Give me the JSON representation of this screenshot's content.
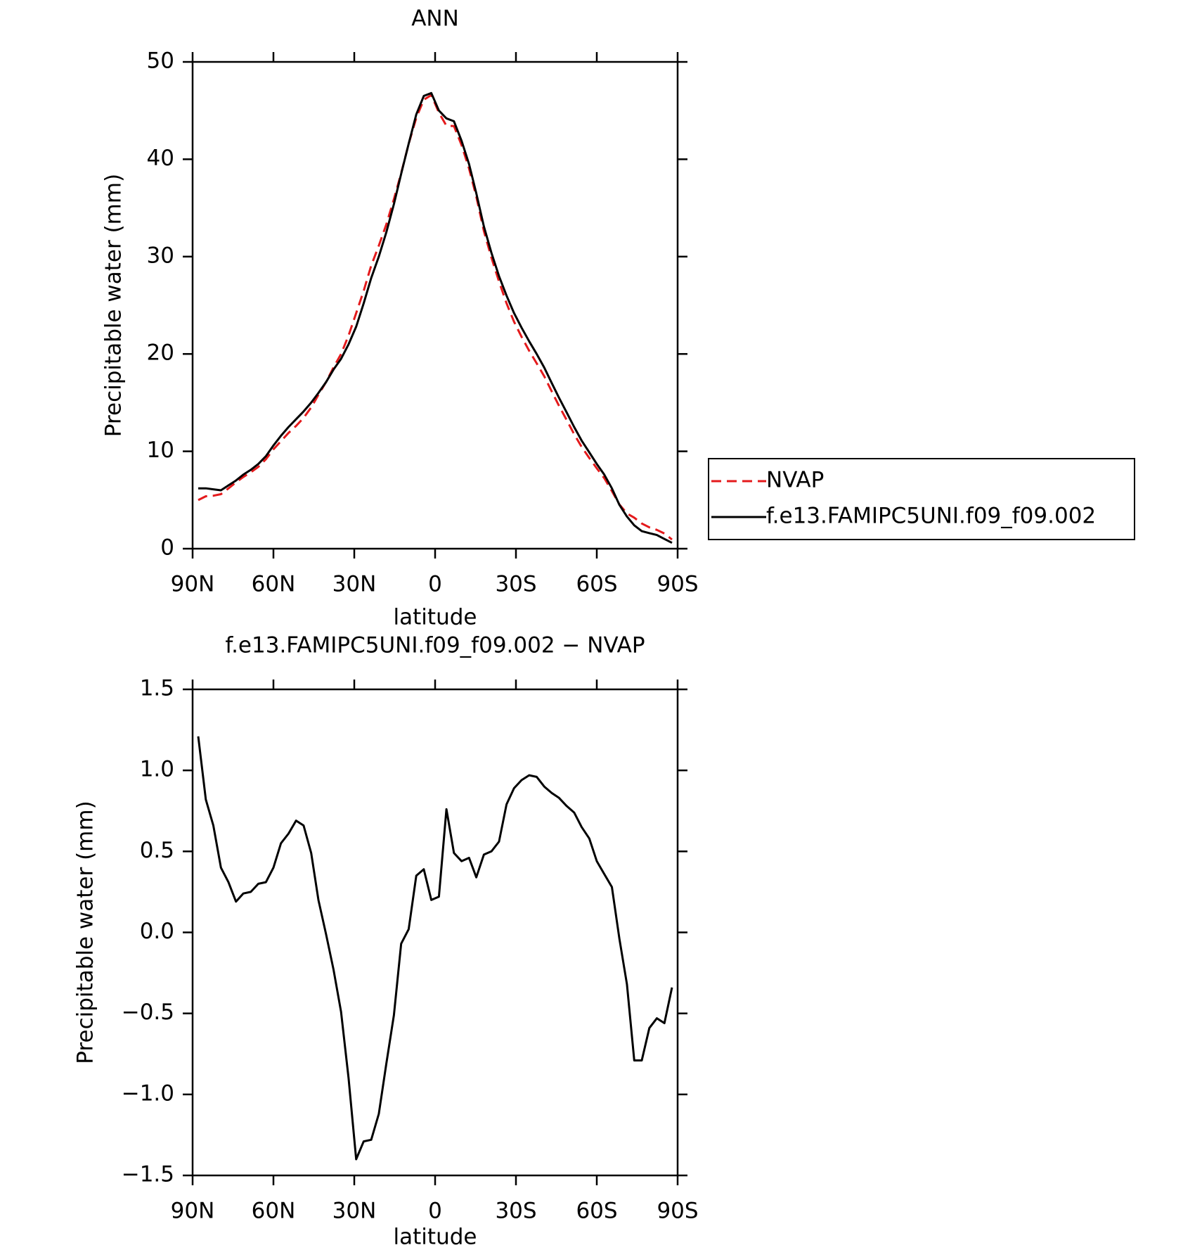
{
  "chart_data": [
    {
      "type": "line",
      "title": "ANN",
      "xlabel": "latitude",
      "ylabel": "Precipitable water (mm)",
      "x": [
        87.9,
        85.1,
        82.3,
        79.5,
        76.7,
        73.9,
        71.2,
        68.4,
        65.6,
        62.8,
        60.0,
        57.2,
        54.4,
        51.6,
        48.8,
        46.0,
        43.3,
        40.5,
        37.7,
        34.9,
        32.1,
        29.3,
        26.5,
        23.7,
        20.9,
        18.1,
        15.3,
        12.6,
        9.8,
        7.0,
        4.2,
        1.4,
        -1.4,
        -4.2,
        -7.0,
        -9.8,
        -12.6,
        -15.3,
        -18.1,
        -20.9,
        -23.7,
        -26.5,
        -29.3,
        -32.1,
        -34.9,
        -37.7,
        -40.5,
        -43.3,
        -46.0,
        -48.8,
        -51.6,
        -54.4,
        -57.2,
        -60.0,
        -62.8,
        -65.6,
        -68.4,
        -71.2,
        -73.9,
        -76.7,
        -79.5,
        -82.3,
        -85.1,
        -87.9
      ],
      "series": [
        {
          "name": "NVAP",
          "color": "#e41a1c",
          "dash": "dashed",
          "values": [
            4.99,
            5.38,
            5.44,
            5.6,
            6.19,
            6.81,
            7.36,
            7.85,
            8.4,
            9.19,
            10.2,
            11.05,
            11.89,
            12.61,
            13.44,
            14.51,
            15.8,
            17.11,
            18.63,
            19.99,
            21.9,
            24.2,
            26.49,
            29.08,
            31.12,
            33.31,
            35.91,
            38.57,
            41.58,
            44.25,
            46.11,
            46.6,
            44.78,
            43.44,
            43.41,
            41.46,
            39.04,
            36.16,
            32.62,
            29.9,
            27.44,
            25.21,
            23.31,
            21.76,
            20.33,
            19.04,
            17.7,
            16.14,
            14.67,
            13.22,
            11.76,
            10.45,
            9.32,
            8.26,
            7.24,
            5.92,
            4.54,
            3.62,
            3.19,
            2.59,
            2.19,
            1.93,
            1.56,
            0.94
          ]
        },
        {
          "name": "f.e13.FAMIPC5UNI.f09_f09.002",
          "color": "#000000",
          "dash": "solid",
          "values": [
            6.2,
            6.2,
            6.1,
            6.0,
            6.5,
            7.0,
            7.6,
            8.1,
            8.7,
            9.5,
            10.6,
            11.6,
            12.5,
            13.3,
            14.1,
            15.0,
            16.0,
            17.1,
            18.4,
            19.5,
            21.0,
            22.8,
            25.2,
            27.8,
            30.0,
            32.5,
            35.4,
            38.5,
            41.6,
            44.6,
            46.5,
            46.8,
            45.0,
            44.2,
            43.9,
            41.9,
            39.5,
            36.5,
            33.1,
            30.4,
            28.0,
            26.0,
            24.2,
            22.7,
            21.3,
            20.0,
            18.6,
            17.0,
            15.5,
            14.0,
            12.5,
            11.1,
            9.9,
            8.7,
            7.6,
            6.2,
            4.5,
            3.3,
            2.4,
            1.8,
            1.6,
            1.4,
            1.0,
            0.6
          ]
        }
      ],
      "xlim": [
        90,
        -90
      ],
      "xticks": [
        {
          "value": 90,
          "label": "90N"
        },
        {
          "value": 60,
          "label": "60N"
        },
        {
          "value": 30,
          "label": "30N"
        },
        0,
        {
          "value": -30,
          "label": "30S"
        },
        {
          "value": -60,
          "label": "60S"
        },
        {
          "value": -90,
          "label": "90S"
        }
      ],
      "ylim": [
        0,
        50
      ],
      "yticks": [
        0,
        10,
        20,
        30,
        40,
        50
      ],
      "grid": false,
      "legend": "outside-right"
    },
    {
      "type": "line",
      "title": "f.e13.FAMIPC5UNI.f09_f09.002 − NVAP",
      "xlabel": "latitude",
      "ylabel": "Precipitable water (mm)",
      "x": [
        87.9,
        85.1,
        82.3,
        79.5,
        76.7,
        73.9,
        71.2,
        68.4,
        65.6,
        62.8,
        60.0,
        57.2,
        54.4,
        51.6,
        48.8,
        46.0,
        43.3,
        40.5,
        37.7,
        34.9,
        32.1,
        29.3,
        26.5,
        23.7,
        20.9,
        18.1,
        15.3,
        12.6,
        9.8,
        7.0,
        4.2,
        1.4,
        -1.4,
        -4.2,
        -7.0,
        -9.8,
        -12.6,
        -15.3,
        -18.1,
        -20.9,
        -23.7,
        -26.5,
        -29.3,
        -32.1,
        -34.9,
        -37.7,
        -40.5,
        -43.3,
        -46.0,
        -48.8,
        -51.6,
        -54.4,
        -57.2,
        -60.0,
        -62.8,
        -65.6,
        -68.4,
        -71.2,
        -73.9,
        -76.7,
        -79.5,
        -82.3,
        -85.1,
        -87.9
      ],
      "series": [
        {
          "color": "#000000",
          "dash": "solid",
          "values": [
            1.21,
            0.82,
            0.66,
            0.4,
            0.31,
            0.19,
            0.24,
            0.25,
            0.3,
            0.31,
            0.4,
            0.55,
            0.61,
            0.69,
            0.66,
            0.49,
            0.2,
            -0.01,
            -0.23,
            -0.49,
            -0.9,
            -1.4,
            -1.29,
            -1.28,
            -1.12,
            -0.81,
            -0.51,
            -0.07,
            0.02,
            0.35,
            0.39,
            0.2,
            0.22,
            0.76,
            0.49,
            0.44,
            0.46,
            0.34,
            0.48,
            0.5,
            0.56,
            0.79,
            0.89,
            0.94,
            0.97,
            0.96,
            0.9,
            0.86,
            0.83,
            0.78,
            0.74,
            0.65,
            0.58,
            0.44,
            0.36,
            0.28,
            -0.04,
            -0.32,
            -0.79,
            -0.79,
            -0.59,
            -0.53,
            -0.56,
            -0.34
          ]
        }
      ],
      "xlim": [
        90,
        -90
      ],
      "xticks": [
        {
          "value": 90,
          "label": "90N"
        },
        {
          "value": 60,
          "label": "60N"
        },
        {
          "value": 30,
          "label": "30N"
        },
        0,
        {
          "value": -30,
          "label": "30S"
        },
        {
          "value": -60,
          "label": "60S"
        },
        {
          "value": -90,
          "label": "90S"
        }
      ],
      "ylim": [
        -1.5,
        1.5
      ],
      "yticks": [
        {
          "value": -1.5,
          "label": "−1.5"
        },
        {
          "value": -1.0,
          "label": "−1.0"
        },
        {
          "value": -0.5,
          "label": "−0.5"
        },
        {
          "value": 0,
          "label": "0.0"
        },
        0.5,
        {
          "value": 1.0,
          "label": "1.0"
        },
        1.5
      ],
      "grid": false
    }
  ]
}
